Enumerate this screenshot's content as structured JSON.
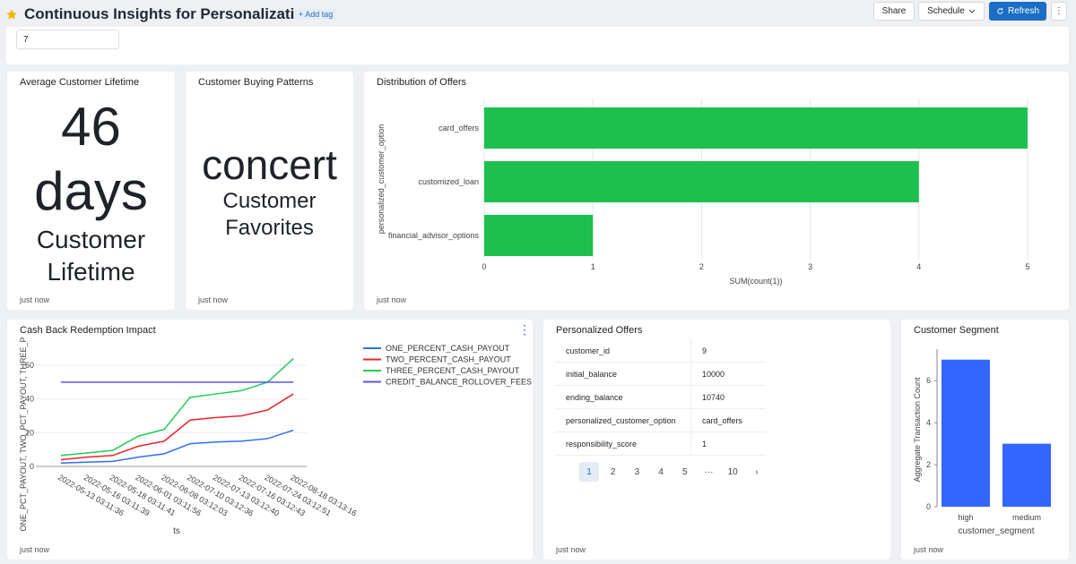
{
  "header": {
    "title": "Continuous Insights for Personalization",
    "tag_button": "+ Add tag",
    "buttons": [
      "Share",
      "Schedule",
      "Refresh"
    ]
  },
  "filter": {
    "value": "7"
  },
  "panels": [
    {
      "title": "Average Customer Lifetime",
      "value": "46 days",
      "subtitle": "Customer Lifetime",
      "footer": "just now"
    },
    {
      "title": "Customer Buying Patterns",
      "value": "concert",
      "subtitle": "Customer Favorites",
      "footer": "just now"
    },
    {
      "title": "Distribution of Offers",
      "footer": "just now",
      "chart": {
        "type": "bar",
        "orientation": "horizontal",
        "categories": [
          "card_offers",
          "customized_loan",
          "financial_advisor_options"
        ],
        "values": [
          5,
          4,
          1
        ],
        "color": "#1dbf4f",
        "xlim": [
          0,
          5
        ],
        "xticks": [
          0,
          1,
          2,
          3,
          4,
          5
        ],
        "x_label": "SUM(count(1))",
        "y_label": "personalized_customer_option",
        "grid": true
      }
    },
    {
      "title": "Cash Back Redemption Impact",
      "footer": "just now",
      "chart": {
        "type": "line",
        "categories": [
          "2022-05-13 03:11:36",
          "2022-05-16 03:11:39",
          "2022-05-18 03:11:41",
          "2022-06-01 03:11:56",
          "2022-06-08 03:12:03",
          "2022-07-10 03:12:36",
          "2022-07-13 03:12:40",
          "2022-07-16 03:12:43",
          "2022-07-24 03:12:51",
          "2022-08-18 03:13:16"
        ],
        "series": [
          {
            "name": "ONE_PERCENT_CASH_PAYOUT",
            "color": "#2f6fef",
            "values": [
              2,
              2.5,
              3,
              5.5,
              7.5,
              13.5,
              14.5,
              15,
              16.5,
              21.5
            ]
          },
          {
            "name": "TWO_PERCENT_CASH_PAYOUT",
            "color": "#e8262a",
            "values": [
              4,
              5.5,
              6.5,
              12,
              15,
              27.5,
              29,
              30,
              33.5,
              43
            ]
          },
          {
            "name": "THREE_PERCENT_CASH_PAYOUT",
            "color": "#22cc55",
            "values": [
              6.5,
              8,
              9.5,
              18,
              22,
              41,
              43,
              45,
              50,
              64
            ]
          },
          {
            "name": "CREDIT_BALANCE_ROLLOVER_FEES",
            "color": "#5a55ee",
            "values": [
              50,
              50,
              50,
              50,
              50,
              50,
              50,
              50,
              50,
              50
            ]
          }
        ],
        "ylim": [
          0,
          68
        ],
        "yticks": [
          0,
          20,
          40,
          60
        ],
        "x_label": "ts",
        "y_label": "ONE_PCT_PAYOUT, TWO_PCT_PAYOUT, THREE_P",
        "legend": "top-right",
        "grid": true
      }
    },
    {
      "title": "Personalized Offers",
      "footer": "just now",
      "table": {
        "rows": [
          [
            "customer_id",
            "9"
          ],
          [
            "initial_balance",
            "10000"
          ],
          [
            "ending_balance",
            "10740"
          ],
          [
            "personalized_customer_option",
            "card_offers"
          ],
          [
            "responsibility_score",
            "1"
          ]
        ]
      },
      "pagination": [
        "1",
        "2",
        "3",
        "4",
        "5",
        "···",
        "10"
      ]
    },
    {
      "title": "Customer Segment",
      "footer": "just now",
      "chart": {
        "type": "bar",
        "orientation": "vertical",
        "categories": [
          "high",
          "medium"
        ],
        "values": [
          7,
          3
        ],
        "color": "#3366ff",
        "ylim": [
          0,
          7.5
        ],
        "yticks": [
          0,
          2,
          4,
          6
        ],
        "x_label": "customer_segment",
        "y_label": "Aggregate Transaction Count",
        "grid": false
      }
    }
  ]
}
